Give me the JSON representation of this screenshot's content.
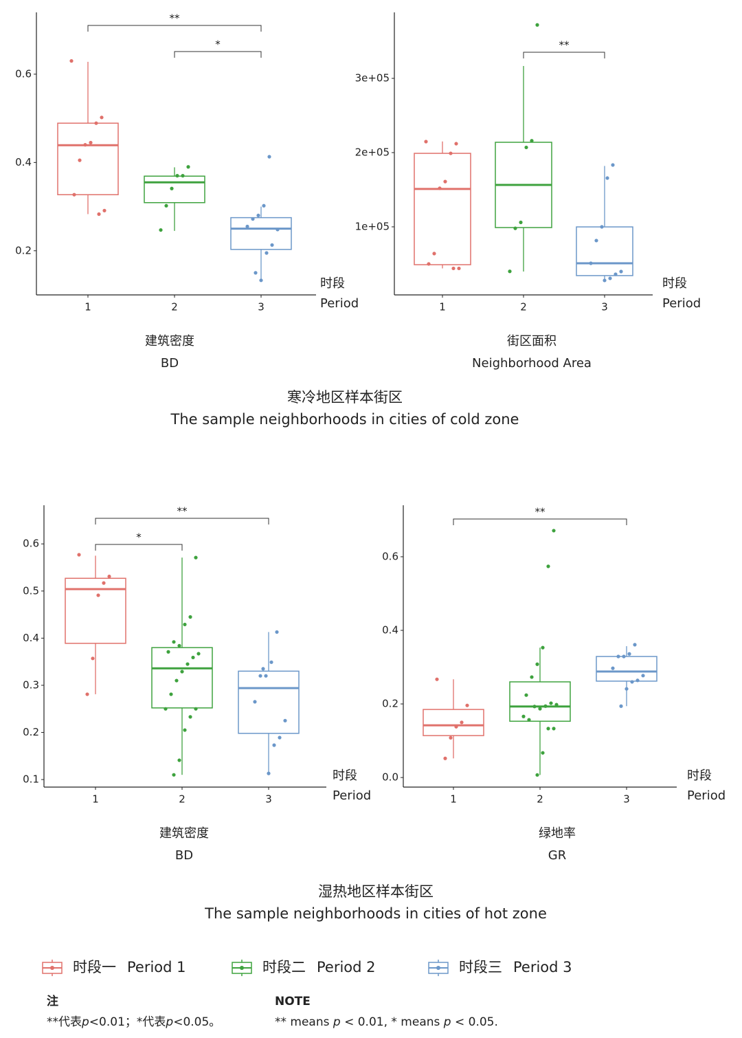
{
  "chart_data": [
    {
      "type": "box",
      "title": "建筑密度",
      "title_en": "BD",
      "xlabel": "时段",
      "xlabel_en": "Period",
      "categories": [
        "1",
        "2",
        "3"
      ],
      "ylim": [
        0.1,
        0.74
      ],
      "yticks": [
        0.2,
        0.4,
        0.6
      ],
      "annotations": [
        {
          "from": "1",
          "to": "3",
          "label": "**"
        },
        {
          "from": "2",
          "to": "3",
          "label": "*"
        }
      ],
      "series": [
        {
          "color": "#e0716b",
          "whisker_low": 0.283,
          "q1": 0.327,
          "median": 0.439,
          "q3": 0.489,
          "whisker_high": 0.628,
          "values": [
            0.63,
            0.502,
            0.489,
            0.445,
            0.44,
            0.405,
            0.327,
            0.291,
            0.283
          ]
        },
        {
          "color": "#3ea23e",
          "whisker_low": 0.245,
          "q1": 0.309,
          "median": 0.355,
          "q3": 0.369,
          "whisker_high": 0.389,
          "values": [
            0.39,
            0.37,
            0.37,
            0.341,
            0.302,
            0.247
          ]
        },
        {
          "color": "#6b97c9",
          "whisker_low": 0.133,
          "q1": 0.203,
          "median": 0.25,
          "q3": 0.275,
          "whisker_high": 0.3,
          "values": [
            0.413,
            0.302,
            0.28,
            0.272,
            0.255,
            0.248,
            0.213,
            0.195,
            0.133,
            0.15
          ]
        }
      ]
    },
    {
      "type": "box",
      "title": "街区面积",
      "title_en": "Neighborhood Area",
      "xlabel": "时段",
      "xlabel_en": "Period",
      "categories": [
        "1",
        "2",
        "3"
      ],
      "ylim": [
        8300,
        388900
      ],
      "yticks": [
        {
          "value": 100000,
          "label": "1e+05"
        },
        {
          "value": 200000,
          "label": "2e+05"
        },
        {
          "value": 300000,
          "label": "3e+05"
        }
      ],
      "annotations": [
        {
          "from": "2",
          "to": "3",
          "label": "**"
        }
      ],
      "series": [
        {
          "color": "#e0716b",
          "whisker_low": 44000,
          "q1": 49000,
          "median": 151000,
          "q3": 199000,
          "whisker_high": 215000,
          "values": [
            214800,
            212000,
            199000,
            161000,
            152000,
            64000,
            50000,
            44000,
            44000
          ]
        },
        {
          "color": "#3ea23e",
          "whisker_low": 39800,
          "q1": 99000,
          "median": 156500,
          "q3": 213900,
          "whisker_high": 316700,
          "values": [
            372000,
            216000,
            207000,
            106000,
            98000,
            40000
          ]
        },
        {
          "color": "#6b97c9",
          "whisker_low": 26900,
          "q1": 34300,
          "median": 50900,
          "q3": 99900,
          "whisker_high": 182000,
          "values": [
            183300,
            165700,
            100000,
            81500,
            50900,
            39800,
            36100,
            30600,
            27800
          ]
        }
      ]
    },
    {
      "type": "box",
      "title": "建筑密度",
      "title_en": "BD",
      "xlabel": "时段",
      "xlabel_en": "Period",
      "categories": [
        "1",
        "2",
        "3"
      ],
      "ylim": [
        0.084,
        0.682
      ],
      "yticks": [
        0.1,
        0.2,
        0.3,
        0.4,
        0.5,
        0.6
      ],
      "annotations": [
        {
          "from": "1",
          "to": "3",
          "label": "**"
        },
        {
          "from": "1",
          "to": "2",
          "label": "*"
        }
      ],
      "series": [
        {
          "color": "#e0716b",
          "whisker_low": 0.281,
          "q1": 0.389,
          "median": 0.504,
          "q3": 0.527,
          "whisker_high": 0.575,
          "values": [
            0.577,
            0.531,
            0.517,
            0.491,
            0.357,
            0.281
          ]
        },
        {
          "color": "#3ea23e",
          "whisker_low": 0.11,
          "q1": 0.252,
          "median": 0.336,
          "q3": 0.38,
          "whisker_high": 0.571,
          "values": [
            0.571,
            0.445,
            0.429,
            0.384,
            0.392,
            0.371,
            0.367,
            0.359,
            0.345,
            0.329,
            0.31,
            0.281,
            0.25,
            0.25,
            0.233,
            0.205,
            0.141,
            0.11
          ]
        },
        {
          "color": "#6b97c9",
          "whisker_low": 0.113,
          "q1": 0.198,
          "median": 0.294,
          "q3": 0.33,
          "whisker_high": 0.413,
          "values": [
            0.413,
            0.349,
            0.32,
            0.32,
            0.265,
            0.225,
            0.189,
            0.173,
            0.113,
            0.335
          ]
        }
      ]
    },
    {
      "type": "box",
      "title": "绿地率",
      "title_en": "GR",
      "xlabel": "时段",
      "xlabel_en": "Period",
      "categories": [
        "1",
        "2",
        "3"
      ],
      "ylim": [
        -0.026,
        0.74
      ],
      "yticks": [
        {
          "value": 0,
          "label": "0.0"
        },
        0.2,
        0.4,
        0.6
      ],
      "annotations": [
        {
          "from": "1",
          "to": "3",
          "label": "**"
        }
      ],
      "series": [
        {
          "color": "#e0716b",
          "whisker_low": 0.052,
          "q1": 0.114,
          "median": 0.142,
          "q3": 0.185,
          "whisker_high": 0.267,
          "values": [
            0.267,
            0.196,
            0.15,
            0.138,
            0.108,
            0.052
          ]
        },
        {
          "color": "#3ea23e",
          "whisker_low": 0.007,
          "q1": 0.153,
          "median": 0.193,
          "q3": 0.26,
          "whisker_high": 0.353,
          "values": [
            0.671,
            0.574,
            0.353,
            0.308,
            0.273,
            0.224,
            0.198,
            0.202,
            0.194,
            0.187,
            0.193,
            0.157,
            0.166,
            0.133,
            0.133,
            0.067,
            0.007
          ]
        },
        {
          "color": "#6b97c9",
          "whisker_low": 0.194,
          "q1": 0.262,
          "median": 0.288,
          "q3": 0.329,
          "whisker_high": 0.357,
          "values": [
            0.361,
            0.336,
            0.329,
            0.329,
            0.297,
            0.277,
            0.264,
            0.26,
            0.241,
            0.194
          ]
        }
      ]
    }
  ],
  "sections": [
    {
      "title": "寒冷地区样本街区",
      "subtitle": "The sample neighborhoods in cities of cold zone"
    },
    {
      "title": "湿热地区样本街区",
      "subtitle": "The sample neighborhoods in cities of hot zone"
    }
  ],
  "legend": [
    {
      "label_zh": "时段一",
      "label_en": "Period 1",
      "color": "#e0716b"
    },
    {
      "label_zh": "时段二",
      "label_en": "Period 2",
      "color": "#3ea23e"
    },
    {
      "label_zh": "时段三",
      "label_en": "Period 3",
      "color": "#6b97c9"
    }
  ],
  "note": {
    "title_zh": "注",
    "text_zh": [
      "**代表",
      "p",
      "<0.01；*代表",
      "p",
      "<0.05。"
    ],
    "title_en": "NOTE",
    "text_en": [
      "** means ",
      "p",
      " < 0.01, * means ",
      "p",
      " < 0.05."
    ]
  }
}
